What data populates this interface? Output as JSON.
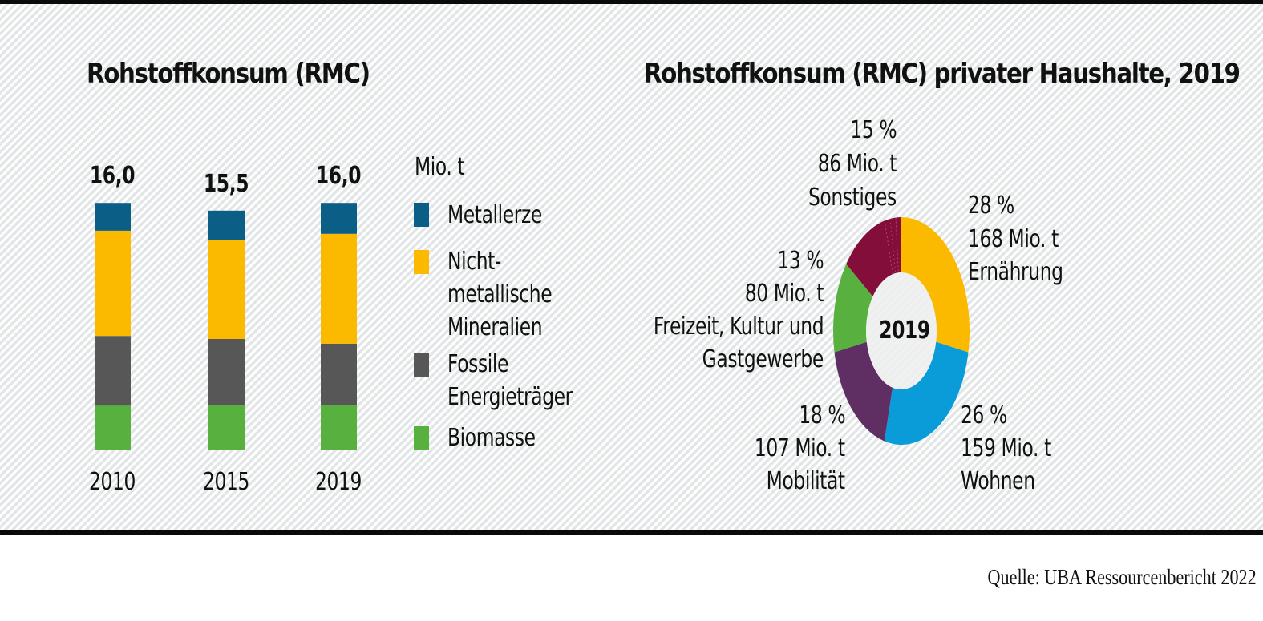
{
  "left_chart": {
    "title": "Rohstoffkonsum (RMC)",
    "unit_label": "Mio. t",
    "legend": [
      {
        "label_lines": [
          "Metallerze"
        ],
        "color": "#0b5f86"
      },
      {
        "label_lines": [
          "Nicht-",
          "metallische",
          "Mineralien"
        ],
        "color": "#fbb900"
      },
      {
        "label_lines": [
          "Fossile",
          "Energieträger"
        ],
        "color": "#575757"
      },
      {
        "label_lines": [
          "Biomasse"
        ],
        "color": "#58b13f"
      }
    ],
    "total_labels": [
      "16,0",
      "15,5",
      "16,0"
    ],
    "year_labels": [
      "2010",
      "2015",
      "2019"
    ]
  },
  "right_chart": {
    "title": "Rohstoffkonsum (RMC) privater Haushalte, 2019",
    "center_label": "2019",
    "labels": {
      "sonstiges": {
        "pct": "15 %",
        "amount": "86 Mio. t",
        "name": "Sonstiges"
      },
      "ernaehrung": {
        "pct": "28 %",
        "amount": "168 Mio. t",
        "name": "Ernährung"
      },
      "freizeit": {
        "pct": "13 %",
        "amount": "80 Mio. t",
        "name_line1": "Freizeit, Kultur und",
        "name_line2": "Gastgewerbe"
      },
      "wohnen": {
        "pct": "26 %",
        "amount": "159 Mio. t",
        "name": "Wohnen"
      },
      "mobilitaet": {
        "pct": "18 %",
        "amount": "107 Mio. t",
        "name": "Mobilität"
      }
    }
  },
  "source": "Quelle: UBA Ressourcenbericht 2022",
  "chart_data": [
    {
      "type": "bar",
      "stacked": true,
      "title": "Rohstoffkonsum (RMC)",
      "ylabel": "Mio. t",
      "categories": [
        "2010",
        "2015",
        "2019"
      ],
      "totals": [
        16.0,
        15.5,
        16.0
      ],
      "series": [
        {
          "name": "Biomasse",
          "color": "#58b13f",
          "values": [
            2.9,
            2.9,
            2.9
          ]
        },
        {
          "name": "Fossile Energieträger",
          "color": "#575757",
          "values": [
            4.5,
            4.3,
            4.0
          ]
        },
        {
          "name": "Nicht-metallische Mineralien",
          "color": "#fbb900",
          "values": [
            6.8,
            6.4,
            7.1
          ]
        },
        {
          "name": "Metallerze",
          "color": "#0b5f86",
          "values": [
            1.8,
            1.9,
            2.0
          ]
        }
      ],
      "legend": "right",
      "grid": false
    },
    {
      "type": "pie",
      "donut": true,
      "title": "Rohstoffkonsum (RMC) privater Haushalte, 2019",
      "center_label": "2019",
      "unit": "Mio. t",
      "slices": [
        {
          "name": "Ernährung",
          "percent": 28,
          "value": 168,
          "color": "#fbb900"
        },
        {
          "name": "Wohnen",
          "percent": 26,
          "value": 159,
          "color": "#0a9bd9"
        },
        {
          "name": "Mobilität",
          "percent": 18,
          "value": 107,
          "color": "#5f2f63"
        },
        {
          "name": "Freizeit, Kultur und Gastgewerbe",
          "percent": 13,
          "value": 80,
          "color": "#58b13f"
        },
        {
          "name": "Sonstiges",
          "percent": 15,
          "value": 86,
          "color": "#830e3a"
        }
      ]
    }
  ]
}
